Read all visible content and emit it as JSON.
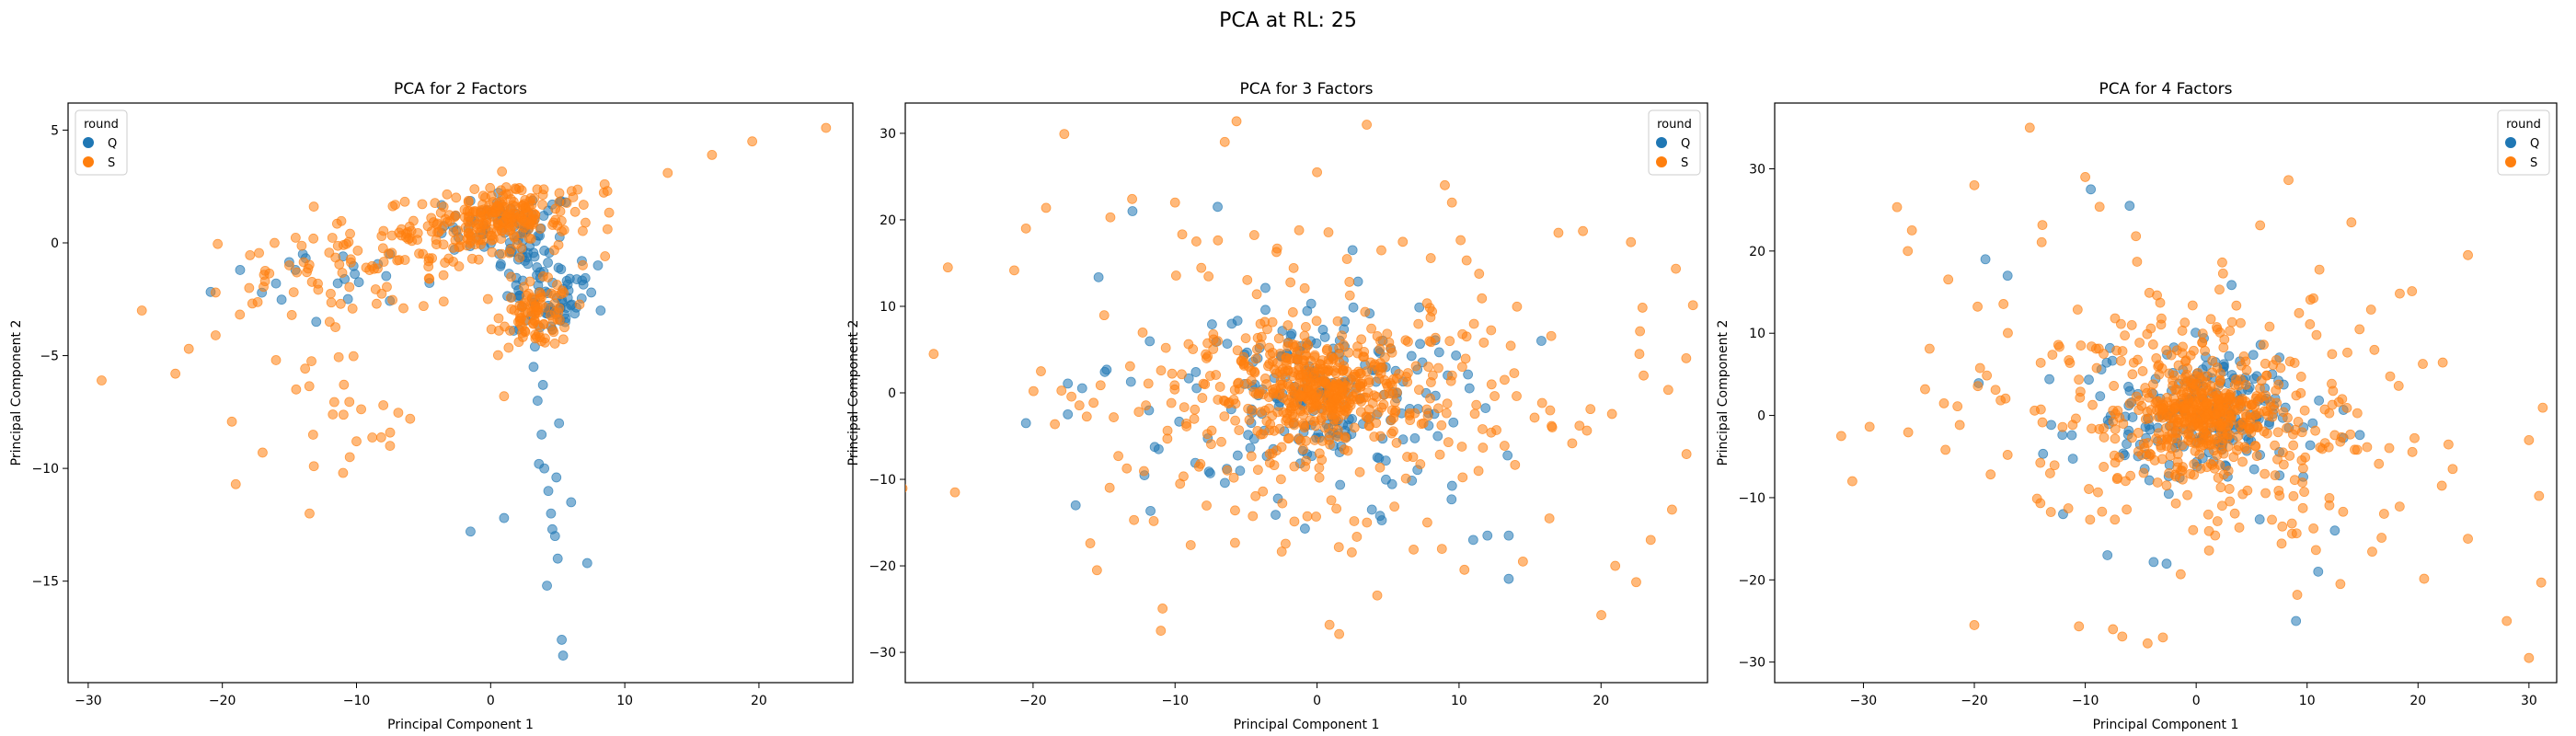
{
  "suptitle": "PCA at RL: 25",
  "colors": {
    "Q": "#1f77b4",
    "S": "#ff7f0e"
  },
  "chart_data": [
    {
      "type": "scatter",
      "title": "PCA for 2 Factors",
      "xlabel": "Principal Component 1",
      "ylabel": "Principal Component 2",
      "xlim": [
        -31.5,
        27
      ],
      "ylim": [
        -19.5,
        6.2
      ],
      "xticks": [
        -30,
        -20,
        -10,
        0,
        10,
        20
      ],
      "yticks": [
        -15,
        -10,
        -5,
        0,
        5
      ],
      "legend": {
        "title": "round",
        "position": "top-left",
        "entries": [
          "Q",
          "S"
        ]
      },
      "series": [
        {
          "name": "Q",
          "color": "#1f77b4",
          "clusters": [
            {
              "cx": 1.5,
              "cy": 0.8,
              "sx": 2.5,
              "sy": 0.7,
              "n": 60
            },
            {
              "cx": 2.5,
              "cy": -1.2,
              "sx": 1.0,
              "sy": 1.0,
              "n": 40
            },
            {
              "cx": 4.0,
              "cy": -3.0,
              "sx": 1.2,
              "sy": 0.6,
              "n": 30
            },
            {
              "cx": 5.5,
              "cy": -2.0,
              "sx": 1.2,
              "sy": 0.8,
              "n": 20
            },
            {
              "cx": -10,
              "cy": -1.5,
              "sx": 5,
              "sy": 0.8,
              "n": 18
            }
          ],
          "points": [
            {
              "x": 3.2,
              "y": -5.5
            },
            {
              "x": 3.5,
              "y": -7
            },
            {
              "x": 3.8,
              "y": -8.5
            },
            {
              "x": 4,
              "y": -10
            },
            {
              "x": 4.3,
              "y": -11
            },
            {
              "x": 4.5,
              "y": -12
            },
            {
              "x": 4.8,
              "y": -13
            },
            {
              "x": 5,
              "y": -14
            },
            {
              "x": 4.2,
              "y": -15.2
            },
            {
              "x": 5.3,
              "y": -17.6
            },
            {
              "x": 5.4,
              "y": -18.3
            },
            {
              "x": 7.2,
              "y": -14.2
            },
            {
              "x": 4.6,
              "y": -12.7
            },
            {
              "x": 1,
              "y": -12.2
            },
            {
              "x": -1.5,
              "y": -12.8
            },
            {
              "x": 6,
              "y": -11.5
            },
            {
              "x": 3.6,
              "y": -9.8
            },
            {
              "x": 4.9,
              "y": -10.4
            },
            {
              "x": 3.9,
              "y": -6.3
            },
            {
              "x": 5.1,
              "y": -8
            },
            {
              "x": 3.3,
              "y": -4.6
            },
            {
              "x": 8,
              "y": -1
            },
            {
              "x": 7.5,
              "y": -2.2
            },
            {
              "x": 6.8,
              "y": -0.8
            },
            {
              "x": 8.2,
              "y": -3
            },
            {
              "x": -13,
              "y": -3.5
            },
            {
              "x": -16,
              "y": -1.8
            },
            {
              "x": -14,
              "y": -0.5
            },
            {
              "x": -11,
              "y": -0.6
            },
            {
              "x": -7.5,
              "y": -0.5
            }
          ]
        },
        {
          "name": "S",
          "color": "#ff7f0e",
          "clusters": [
            {
              "cx": -1,
              "cy": 0.8,
              "sx": 3.5,
              "sy": 0.7,
              "n": 150
            },
            {
              "cx": 1.5,
              "cy": 1.2,
              "sx": 1.5,
              "sy": 0.6,
              "n": 90
            },
            {
              "cx": 3.5,
              "cy": -3.2,
              "sx": 1.3,
              "sy": 0.7,
              "n": 90
            },
            {
              "cx": -8,
              "cy": -0.5,
              "sx": 4,
              "sy": 0.6,
              "n": 40
            },
            {
              "cx": -14,
              "cy": -1.5,
              "sx": 4,
              "sy": 1.0,
              "n": 40
            },
            {
              "cx": -12,
              "cy": -8,
              "sx": 3.5,
              "sy": 1.8,
              "n": 18
            },
            {
              "cx": 6,
              "cy": 1.8,
              "sx": 1.5,
              "sy": 0.5,
              "n": 12
            }
          ],
          "points": [
            {
              "x": 25,
              "y": 5.1
            },
            {
              "x": 19.5,
              "y": 4.5
            },
            {
              "x": 16.5,
              "y": 3.9
            },
            {
              "x": 13.2,
              "y": 3.1
            },
            {
              "x": 8.7,
              "y": 2.3
            },
            {
              "x": 8.5,
              "y": 2.6
            },
            {
              "x": -29,
              "y": -6.1
            },
            {
              "x": -26,
              "y": -3
            },
            {
              "x": -23.5,
              "y": -5.8
            },
            {
              "x": -22.5,
              "y": -4.7
            },
            {
              "x": -20.5,
              "y": -4.1
            },
            {
              "x": -19,
              "y": -10.7
            },
            {
              "x": -17,
              "y": -9.3
            },
            {
              "x": -13.5,
              "y": -12
            },
            {
              "x": -11,
              "y": -10.2
            },
            {
              "x": -10,
              "y": -8.8
            },
            {
              "x": -10.5,
              "y": -9.5
            },
            {
              "x": -8,
              "y": -7.2
            },
            {
              "x": -7.5,
              "y": -9
            },
            {
              "x": -6,
              "y": -7.8
            },
            {
              "x": 1,
              "y": -6.8
            },
            {
              "x": -14.5,
              "y": -6.5
            },
            {
              "x": -16,
              "y": -5.2
            },
            {
              "x": -12,
              "y": -3.5
            },
            {
              "x": -18,
              "y": -2
            },
            {
              "x": -20.5,
              "y": -2.2
            },
            {
              "x": -5,
              "y": -2.8
            },
            {
              "x": -3.5,
              "y": -2.6
            },
            {
              "x": -6.5,
              "y": -2.9
            },
            {
              "x": -8.5,
              "y": -2.7
            }
          ]
        }
      ]
    },
    {
      "type": "scatter",
      "title": "PCA for 3 Factors",
      "xlabel": "Principal Component 1",
      "ylabel": "Principal Component 2",
      "xlim": [
        -29,
        27.5
      ],
      "ylim": [
        -33.5,
        33.5
      ],
      "xticks": [
        -20,
        -10,
        0,
        10,
        20
      ],
      "yticks": [
        -30,
        -20,
        -10,
        0,
        10,
        20,
        30
      ],
      "legend": {
        "title": "round",
        "position": "top-right",
        "entries": [
          "Q",
          "S"
        ]
      },
      "series": [
        {
          "name": "Q",
          "color": "#1f77b4",
          "clusters": [
            {
              "cx": 0,
              "cy": 0,
              "sx": 4.5,
              "sy": 5.5,
              "n": 180
            },
            {
              "cx": -2,
              "cy": -2,
              "sx": 8,
              "sy": 8,
              "n": 40
            }
          ],
          "points": [
            {
              "x": -13,
              "y": 21
            },
            {
              "x": -7,
              "y": 21.5
            },
            {
              "x": 2.5,
              "y": 16.5
            },
            {
              "x": -17,
              "y": -13
            },
            {
              "x": 12,
              "y": -16.5
            },
            {
              "x": 13.5,
              "y": -16.5
            },
            {
              "x": 13.5,
              "y": -21.5
            },
            {
              "x": 11,
              "y": -17
            },
            {
              "x": -20.5,
              "y": -3.5
            },
            {
              "x": 8.5,
              "y": -5
            }
          ]
        },
        {
          "name": "S",
          "color": "#ff7f0e",
          "clusters": [
            {
              "cx": 0.5,
              "cy": 0,
              "sx": 2.8,
              "sy": 2.5,
              "n": 280
            },
            {
              "cx": 0,
              "cy": 0,
              "sx": 7,
              "sy": 6,
              "n": 250
            },
            {
              "cx": 0,
              "cy": 0,
              "sx": 12,
              "sy": 12,
              "n": 130
            }
          ],
          "points": [
            {
              "x": 3.5,
              "y": 31
            },
            {
              "x": 0,
              "y": 25.5
            },
            {
              "x": -6.5,
              "y": 29
            },
            {
              "x": -26,
              "y": 14.5
            },
            {
              "x": -25.5,
              "y": -11.5
            },
            {
              "x": -20.5,
              "y": 19
            },
            {
              "x": 21,
              "y": -20
            },
            {
              "x": 25,
              "y": -13.5
            },
            {
              "x": 23.5,
              "y": -17
            },
            {
              "x": 14.5,
              "y": -19.5
            },
            {
              "x": -11,
              "y": -27.5
            },
            {
              "x": -15.5,
              "y": -20.5
            },
            {
              "x": 17,
              "y": 18.5
            },
            {
              "x": 9,
              "y": 24
            },
            {
              "x": 9.5,
              "y": 22
            },
            {
              "x": -10,
              "y": 22
            },
            {
              "x": -8.5,
              "y": 17.5
            },
            {
              "x": -27,
              "y": 4.5
            },
            {
              "x": 26,
              "y": 4
            },
            {
              "x": 23,
              "y": 2
            }
          ]
        }
      ]
    },
    {
      "type": "scatter",
      "title": "PCA for 4 Factors",
      "xlabel": "Principal Component 1",
      "ylabel": "Principal Component 2",
      "xlim": [
        -38,
        32.5
      ],
      "ylim": [
        -32.5,
        38
      ],
      "xticks": [
        -30,
        -20,
        -10,
        0,
        10,
        20,
        30
      ],
      "yticks": [
        -30,
        -20,
        -10,
        0,
        10,
        20,
        30
      ],
      "legend": {
        "title": "round",
        "position": "top-right",
        "entries": [
          "Q",
          "S"
        ]
      },
      "series": [
        {
          "name": "Q",
          "color": "#1f77b4",
          "clusters": [
            {
              "cx": 0.5,
              "cy": 0,
              "sx": 3.5,
              "sy": 3.5,
              "n": 170
            },
            {
              "cx": 0,
              "cy": 0,
              "sx": 7.5,
              "sy": 7.5,
              "n": 50
            }
          ],
          "points": [
            {
              "x": -9.5,
              "y": 27.5
            },
            {
              "x": -6,
              "y": 25.5
            },
            {
              "x": -19,
              "y": 19
            },
            {
              "x": 9,
              "y": -25
            },
            {
              "x": -17,
              "y": 17
            },
            {
              "x": -12,
              "y": -12
            },
            {
              "x": 12.5,
              "y": -14
            },
            {
              "x": -8,
              "y": -17
            },
            {
              "x": 11,
              "y": -19
            }
          ]
        },
        {
          "name": "S",
          "color": "#ff7f0e",
          "clusters": [
            {
              "cx": 0.5,
              "cy": 0.5,
              "sx": 2.8,
              "sy": 2.5,
              "n": 280
            },
            {
              "cx": 0,
              "cy": 0,
              "sx": 7,
              "sy": 6.5,
              "n": 230
            },
            {
              "cx": 0,
              "cy": 0,
              "sx": 13,
              "sy": 12,
              "n": 150
            }
          ],
          "points": [
            {
              "x": -15,
              "y": 35
            },
            {
              "x": -10,
              "y": 29
            },
            {
              "x": -20,
              "y": 28
            },
            {
              "x": -32,
              "y": -2.5
            },
            {
              "x": -31,
              "y": -8
            },
            {
              "x": 30,
              "y": -29.5
            },
            {
              "x": 28,
              "y": -25
            },
            {
              "x": 24.5,
              "y": -15
            },
            {
              "x": 24.5,
              "y": 19.5
            },
            {
              "x": 30,
              "y": -3
            },
            {
              "x": -26,
              "y": 20
            },
            {
              "x": -3,
              "y": -27
            },
            {
              "x": -7.5,
              "y": -26
            },
            {
              "x": -20,
              "y": -25.5
            },
            {
              "x": 13,
              "y": -20.5
            }
          ]
        }
      ]
    }
  ]
}
